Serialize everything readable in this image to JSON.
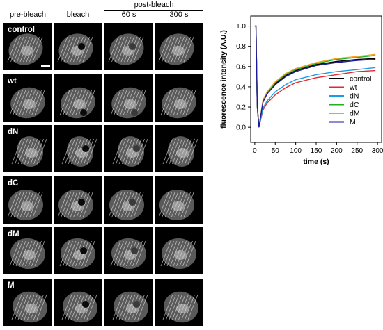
{
  "figure": {
    "column_headers": [
      "pre-bleach",
      "bleach",
      "60 s",
      "300 s"
    ],
    "group_header": "post-bleach",
    "rows": [
      "control",
      "wt",
      "dN",
      "dC",
      "dM",
      "M"
    ]
  },
  "chart_data": {
    "type": "line",
    "xlabel": "time (s)",
    "ylabel": "fluorescence intensity (A.U.)",
    "xlim": [
      -10,
      310
    ],
    "ylim": [
      -0.15,
      1.1
    ],
    "xticks": [
      0,
      50,
      100,
      150,
      200,
      250,
      300
    ],
    "yticks": [
      0.0,
      0.2,
      0.4,
      0.6,
      0.8,
      1.0
    ],
    "legend_position": "bottom-right",
    "x": [
      0,
      3,
      6,
      10,
      20,
      30,
      50,
      75,
      100,
      150,
      200,
      250,
      295
    ],
    "series": [
      {
        "name": "control",
        "color": "#000000",
        "values": [
          1.0,
          1.0,
          0.22,
          0.0,
          0.25,
          0.33,
          0.43,
          0.51,
          0.56,
          0.62,
          0.65,
          0.67,
          0.68
        ]
      },
      {
        "name": "wt",
        "color": "#e8262a",
        "values": [
          1.0,
          1.0,
          0.2,
          0.0,
          0.17,
          0.24,
          0.32,
          0.39,
          0.44,
          0.49,
          0.52,
          0.55,
          0.56
        ]
      },
      {
        "name": "dN",
        "color": "#1e9be6",
        "values": [
          1.0,
          1.0,
          0.2,
          0.0,
          0.19,
          0.26,
          0.35,
          0.42,
          0.47,
          0.52,
          0.55,
          0.57,
          0.59
        ]
      },
      {
        "name": "dC",
        "color": "#22b022",
        "values": [
          1.0,
          1.0,
          0.22,
          0.0,
          0.26,
          0.34,
          0.44,
          0.52,
          0.57,
          0.63,
          0.67,
          0.69,
          0.71
        ]
      },
      {
        "name": "dM",
        "color": "#f5a021",
        "values": [
          1.0,
          1.0,
          0.22,
          0.0,
          0.27,
          0.35,
          0.45,
          0.53,
          0.58,
          0.64,
          0.68,
          0.7,
          0.72
        ]
      },
      {
        "name": "M",
        "color": "#1a1a9c",
        "values": [
          1.0,
          1.0,
          0.22,
          0.0,
          0.25,
          0.33,
          0.42,
          0.5,
          0.55,
          0.61,
          0.64,
          0.66,
          0.67
        ]
      }
    ]
  }
}
